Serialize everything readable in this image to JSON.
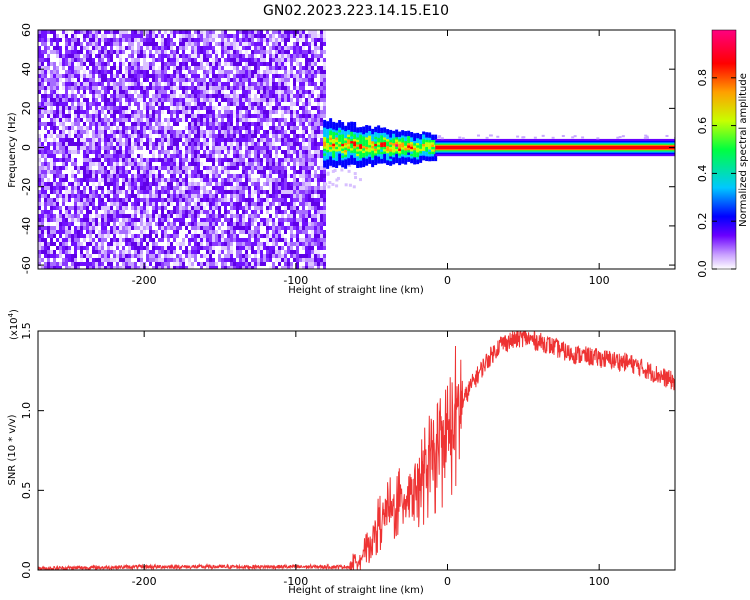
{
  "title": "GN02.2023.223.14.15.E10",
  "chart_data": [
    {
      "type": "heatmap",
      "title": "GN02.2023.223.14.15.E10",
      "xlabel": "Height of straight line (km)",
      "ylabel": "Frequency (Hz)",
      "xlim": [
        -270,
        150
      ],
      "ylim": [
        -62,
        60
      ],
      "x_ticks": [
        -200,
        -100,
        0,
        100
      ],
      "y_ticks": [
        -60,
        -40,
        -20,
        0,
        20,
        40,
        60
      ],
      "colorbar": {
        "label": "Normalized spectral amplitude",
        "range": [
          0.0,
          1.0
        ],
        "ticks": [
          0.0,
          0.2,
          0.4,
          0.6,
          0.8
        ],
        "colors": [
          "#ffffff",
          "#6a00ff",
          "#0000ff",
          "#00c8ff",
          "#00ff60",
          "#c8ff00",
          "#ffa000",
          "#ff0000",
          "#ff0080"
        ]
      },
      "regions": [
        {
          "x_range": [
            -270,
            -82
          ],
          "freq_range": [
            -62,
            60
          ],
          "amplitude": 0.1,
          "description_value": "broadband noise"
        },
        {
          "x_range": [
            -82,
            -8
          ],
          "freq_center": 2,
          "freq_halfwidth": 5,
          "amplitude_peak": 0.9
        },
        {
          "x_range": [
            -8,
            150
          ],
          "freq_center": 0,
          "freq_halfwidth": 2,
          "amplitude": 0.95
        }
      ]
    },
    {
      "type": "line",
      "xlabel": "Height of straight line (km)",
      "ylabel": "SNR (10 * v/v)",
      "yscale_label": "(x10",
      "yscale_exp": "4",
      "y_multiplier": 10000,
      "xlim": [
        -270,
        150
      ],
      "ylim": [
        0.0,
        1.5
      ],
      "x_ticks": [
        -200,
        -100,
        0,
        100
      ],
      "y_ticks": [
        "0.0",
        "0.5",
        "1.0",
        "1.5"
      ],
      "color": "#ee3333",
      "series": [
        {
          "x": [
            -270,
            -200,
            -120,
            -65,
            -55,
            -45,
            -35,
            -25,
            -15,
            -5,
            5,
            15,
            25,
            35,
            50,
            65,
            80,
            100,
            120,
            140,
            150
          ],
          "y": [
            0.01,
            0.02,
            0.02,
            0.02,
            0.1,
            0.3,
            0.4,
            0.5,
            0.6,
            0.75,
            0.95,
            1.15,
            1.3,
            1.42,
            1.46,
            1.42,
            1.36,
            1.33,
            1.3,
            1.22,
            1.18
          ]
        }
      ]
    }
  ]
}
